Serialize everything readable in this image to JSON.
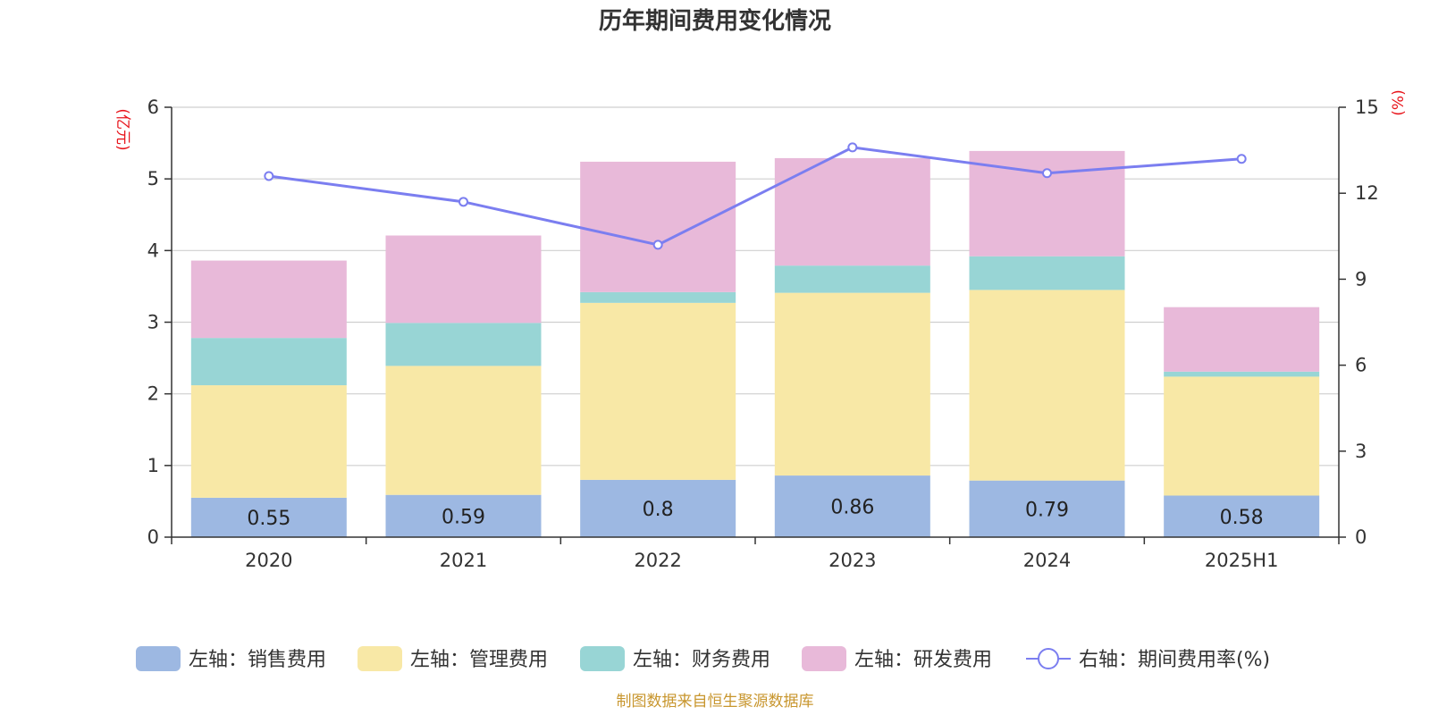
{
  "chart_data": {
    "type": "bar",
    "title": "历年期间费用变化情况",
    "categories": [
      "2020",
      "2021",
      "2022",
      "2023",
      "2024",
      "2025H1"
    ],
    "series": [
      {
        "name": "左轴：销售费用",
        "axis": "left",
        "color": "#9db8e2",
        "values": [
          0.55,
          0.59,
          0.8,
          0.86,
          0.79,
          0.58
        ],
        "labels": [
          "0.55",
          "0.59",
          "0.8",
          "0.86",
          "0.79",
          "0.58"
        ]
      },
      {
        "name": "左轴：管理费用",
        "axis": "left",
        "color": "#f8e8a6",
        "values": [
          1.57,
          1.8,
          2.47,
          2.55,
          2.66,
          1.66
        ]
      },
      {
        "name": "左轴：财务费用",
        "axis": "left",
        "color": "#98d5d5",
        "values": [
          0.66,
          0.6,
          0.15,
          0.38,
          0.47,
          0.07
        ]
      },
      {
        "name": "左轴：研发费用",
        "axis": "left",
        "color": "#e8b9d9",
        "values": [
          1.08,
          1.22,
          1.82,
          1.5,
          1.47,
          0.9
        ]
      },
      {
        "name": "右轴：期间费用率(%)",
        "axis": "right",
        "type": "line",
        "color": "#7b7ef0",
        "values": [
          12.6,
          11.7,
          10.2,
          13.6,
          12.7,
          13.2
        ]
      }
    ],
    "left_axis": {
      "unit": "(亿元)",
      "ylim": [
        0,
        6
      ],
      "ticks": [
        "0",
        "1",
        "2",
        "3",
        "4",
        "5",
        "6"
      ]
    },
    "right_axis": {
      "unit": "(%)",
      "ylim": [
        0,
        15
      ],
      "ticks": [
        "0",
        "3",
        "6",
        "9",
        "12",
        "15"
      ]
    },
    "grid": true,
    "legend_position": "bottom",
    "source": "制图数据来自恒生聚源数据库"
  }
}
